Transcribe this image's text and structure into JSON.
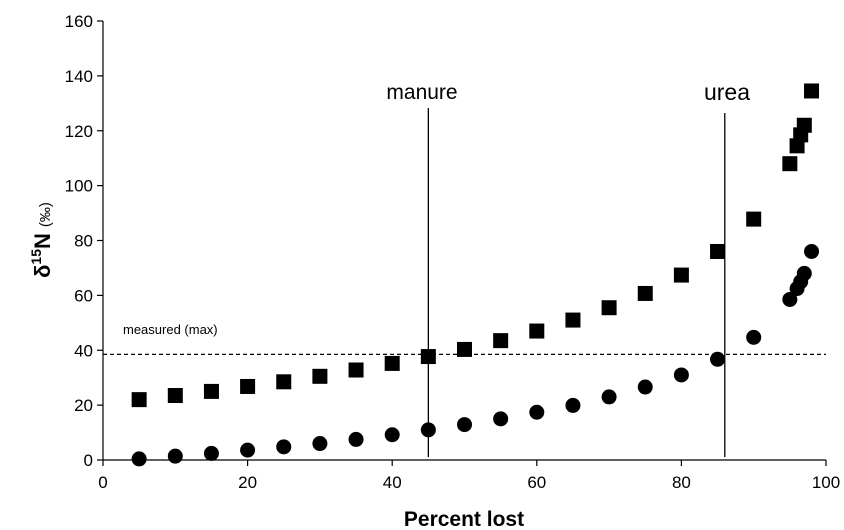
{
  "chart_data": {
    "type": "scatter",
    "title": "",
    "xlabel": "Percent lost",
    "ylabel": {
      "delta": "δ",
      "sup": "15",
      "element": "N",
      "unit": "(‰)"
    },
    "xlim": [
      0,
      100
    ],
    "ylim": [
      0,
      160
    ],
    "x_ticks": [
      "0",
      "20",
      "40",
      "60",
      "80",
      "100"
    ],
    "y_ticks": [
      "0",
      "20",
      "40",
      "60",
      "80",
      "100",
      "120",
      "140",
      "160"
    ],
    "grid": false,
    "legend": "none",
    "series": [
      {
        "marker": "square",
        "color": "#000000",
        "points": [
          [
            5,
            22
          ],
          [
            10,
            23.5
          ],
          [
            15,
            25
          ],
          [
            20,
            26.8
          ],
          [
            25,
            28.5
          ],
          [
            30,
            30.5
          ],
          [
            35,
            32.8
          ],
          [
            40,
            35.2
          ],
          [
            45,
            37.7
          ],
          [
            50,
            40.3
          ],
          [
            55,
            43.5
          ],
          [
            60,
            47
          ],
          [
            65,
            51
          ],
          [
            70,
            55.5
          ],
          [
            75,
            60.7
          ],
          [
            80,
            67.4
          ],
          [
            85,
            76
          ],
          [
            90,
            87.8
          ],
          [
            95,
            108
          ],
          [
            96,
            114.5
          ],
          [
            96.5,
            118.5
          ],
          [
            97,
            122
          ],
          [
            98,
            134.5
          ]
        ]
      },
      {
        "marker": "circle",
        "color": "#000000",
        "points": [
          [
            5,
            0.4
          ],
          [
            10,
            1.4
          ],
          [
            15,
            2.4
          ],
          [
            20,
            3.6
          ],
          [
            25,
            4.8
          ],
          [
            30,
            6
          ],
          [
            35,
            7.5
          ],
          [
            40,
            9.2
          ],
          [
            45,
            11
          ],
          [
            50,
            12.9
          ],
          [
            55,
            15
          ],
          [
            60,
            17.4
          ],
          [
            65,
            19.9
          ],
          [
            70,
            23
          ],
          [
            75,
            26.6
          ],
          [
            80,
            31
          ],
          [
            85,
            36.7
          ],
          [
            90,
            44.7
          ],
          [
            95,
            58.5
          ],
          [
            96,
            62.5
          ],
          [
            96.5,
            65
          ],
          [
            97,
            68
          ],
          [
            98,
            76
          ]
        ]
      }
    ],
    "reference_lines": {
      "measured": {
        "label": "measured (max)",
        "y": 38.5,
        "style": "dashed"
      },
      "manure": {
        "label": "manure",
        "x": 45
      },
      "urea": {
        "label": "urea",
        "x": 86
      }
    }
  }
}
